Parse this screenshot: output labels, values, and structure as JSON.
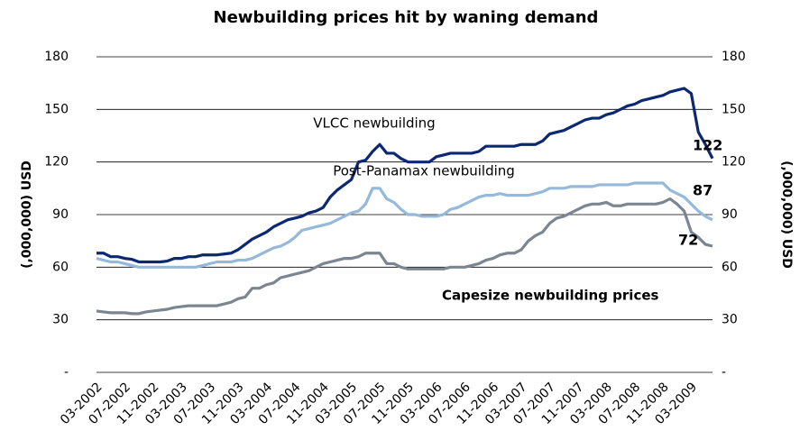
{
  "chart_data": {
    "type": "line",
    "title": "Newbuilding prices hit by waning demand",
    "ylabel": "(,000,000) USD",
    "y2label": "(,000,000) USD",
    "categories": [
      "03-2002",
      null,
      null,
      null,
      "07-2002",
      null,
      null,
      null,
      "11-2002",
      null,
      null,
      null,
      "03-2003",
      null,
      null,
      null,
      "07-2003",
      null,
      null,
      null,
      "11-2003",
      null,
      null,
      null,
      "03-2004",
      null,
      null,
      null,
      "07-2004",
      null,
      null,
      null,
      "11-2004",
      null,
      null,
      null,
      "03-2005",
      null,
      null,
      null,
      "07-2005",
      null,
      null,
      null,
      "11-2005",
      null,
      null,
      null,
      "03-2006",
      null,
      null,
      null,
      "07-2006",
      null,
      null,
      null,
      "11-2006",
      null,
      null,
      null,
      "03-2007",
      null,
      null,
      null,
      "07-2007",
      null,
      null,
      null,
      "11-2007",
      null,
      null,
      null,
      "03-2008",
      null,
      null,
      null,
      "07-2008",
      null,
      null,
      null,
      "11-2008",
      null,
      null,
      null,
      "03-2009",
      null,
      null,
      null
    ],
    "series": [
      {
        "name": "VLCC newbuilding",
        "color": "#0d2872",
        "values": [
          68,
          68,
          66,
          66,
          65,
          64.5,
          63,
          63,
          63,
          63,
          63.5,
          65,
          65,
          66,
          66,
          67,
          67,
          67,
          67.5,
          68,
          70,
          73,
          76,
          78,
          80,
          83,
          85,
          87,
          88,
          89,
          91,
          92,
          94,
          100,
          104,
          107,
          110,
          120,
          121,
          126,
          130,
          125,
          125,
          122,
          120,
          120,
          120,
          120,
          123,
          124,
          125,
          125,
          125,
          125,
          126,
          129,
          129,
          129,
          129,
          129,
          130,
          130,
          130,
          132,
          136,
          137,
          138,
          140,
          142,
          144,
          145,
          145,
          147,
          148,
          150,
          152,
          153,
          155,
          156,
          157,
          158,
          160,
          161,
          162,
          159,
          137,
          130,
          122
        ]
      },
      {
        "name": "Post-Panamax newbuilding",
        "color": "#95b9db",
        "values": [
          65,
          64,
          63,
          63,
          62,
          61,
          60,
          60,
          60,
          60,
          60,
          60,
          60,
          60,
          60,
          61,
          62,
          63,
          63,
          63,
          64,
          64,
          65,
          67,
          69,
          71,
          72,
          74,
          77,
          81,
          82,
          83,
          84,
          85,
          87,
          89,
          91,
          92,
          96,
          105,
          105,
          99,
          97,
          93,
          90,
          90,
          89,
          89,
          89,
          90,
          93,
          94,
          96,
          98,
          100,
          101,
          101,
          102,
          101,
          101,
          101,
          101,
          102,
          103,
          105,
          105,
          105,
          106,
          106,
          106,
          106,
          107,
          107,
          107,
          107,
          107,
          108,
          108,
          108,
          108,
          108,
          104,
          102,
          100,
          96,
          92,
          89,
          87
        ]
      },
      {
        "name": "Capesize newbuilding prices",
        "color": "#7b8692",
        "values": [
          35,
          34.5,
          34,
          34,
          34,
          33.5,
          33.5,
          34.5,
          35,
          35.5,
          36,
          37,
          37.5,
          38,
          38,
          38,
          38,
          38,
          39,
          40,
          42,
          43,
          48,
          48,
          50,
          51,
          54,
          55,
          56,
          57,
          58,
          60,
          62,
          63,
          64,
          65,
          65,
          66,
          68,
          68,
          68,
          62,
          62,
          60,
          59,
          59,
          59,
          59,
          59,
          59,
          60,
          60,
          60,
          61,
          62,
          64,
          65,
          67,
          68,
          68,
          70,
          75,
          78,
          80,
          85,
          88,
          89,
          91,
          93,
          95,
          96,
          96,
          97,
          95,
          95,
          96,
          96,
          96,
          96,
          96,
          97,
          99,
          96,
          92,
          80,
          77,
          73,
          72
        ]
      }
    ],
    "ylim": [
      0,
      180
    ],
    "yticks": [
      {
        "value": 0,
        "label": "-"
      },
      30,
      60,
      90,
      120,
      150,
      180
    ],
    "y2lim": [
      0,
      180
    ],
    "y2ticks": [
      {
        "value": 0,
        "label": "-"
      },
      30,
      60,
      90,
      120,
      150,
      180
    ],
    "grid": true
  }
}
